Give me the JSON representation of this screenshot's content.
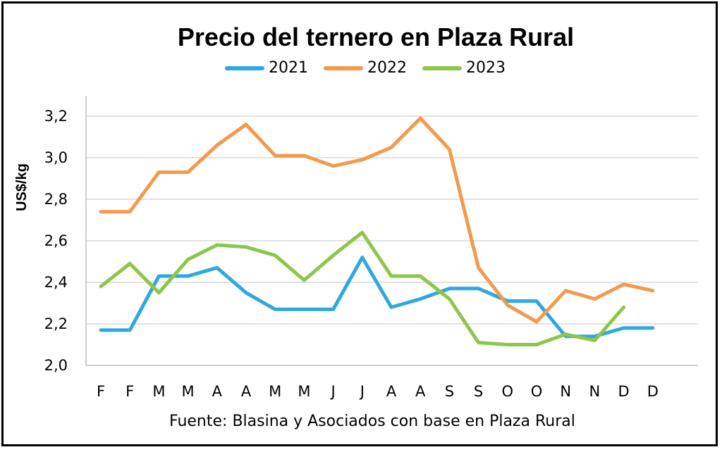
{
  "chart_data": {
    "type": "line",
    "title": "Precio del ternero en Plaza Rural",
    "ylabel": "US$/kg",
    "xlabel": "",
    "source": "Fuente: Blasina y Asociados con base en Plaza Rural",
    "categories": [
      "F",
      "F",
      "M",
      "M",
      "A",
      "A",
      "M",
      "M",
      "J",
      "J",
      "A",
      "A",
      "S",
      "S",
      "O",
      "O",
      "N",
      "N",
      "D",
      "D"
    ],
    "ylim": [
      2.0,
      3.3
    ],
    "yticks": [
      "2,0",
      "2,2",
      "2,4",
      "2,6",
      "2,8",
      "3,0",
      "3,2"
    ],
    "ytick_values": [
      2.0,
      2.2,
      2.4,
      2.6,
      2.8,
      3.0,
      3.2
    ],
    "grid": true,
    "legend_position": "top",
    "series": [
      {
        "name": "2021",
        "color": "#2FA8E0",
        "values": [
          2.17,
          2.17,
          2.43,
          2.43,
          2.47,
          2.35,
          2.27,
          2.27,
          2.27,
          2.52,
          2.28,
          2.32,
          2.37,
          2.37,
          2.31,
          2.31,
          2.14,
          2.14,
          2.18,
          2.18
        ]
      },
      {
        "name": "2022",
        "color": "#F29A4E",
        "values": [
          2.74,
          2.74,
          2.93,
          2.93,
          3.06,
          3.16,
          3.01,
          3.01,
          2.96,
          2.99,
          3.05,
          3.19,
          3.04,
          2.47,
          2.29,
          2.21,
          2.36,
          2.32,
          2.39,
          2.36
        ]
      },
      {
        "name": "2023",
        "color": "#8DC64A",
        "values": [
          2.38,
          2.49,
          2.35,
          2.51,
          2.58,
          2.57,
          2.53,
          2.41,
          2.53,
          2.64,
          2.43,
          2.43,
          2.32,
          2.11,
          2.1,
          2.1,
          2.15,
          2.12,
          2.28,
          null
        ]
      }
    ]
  }
}
